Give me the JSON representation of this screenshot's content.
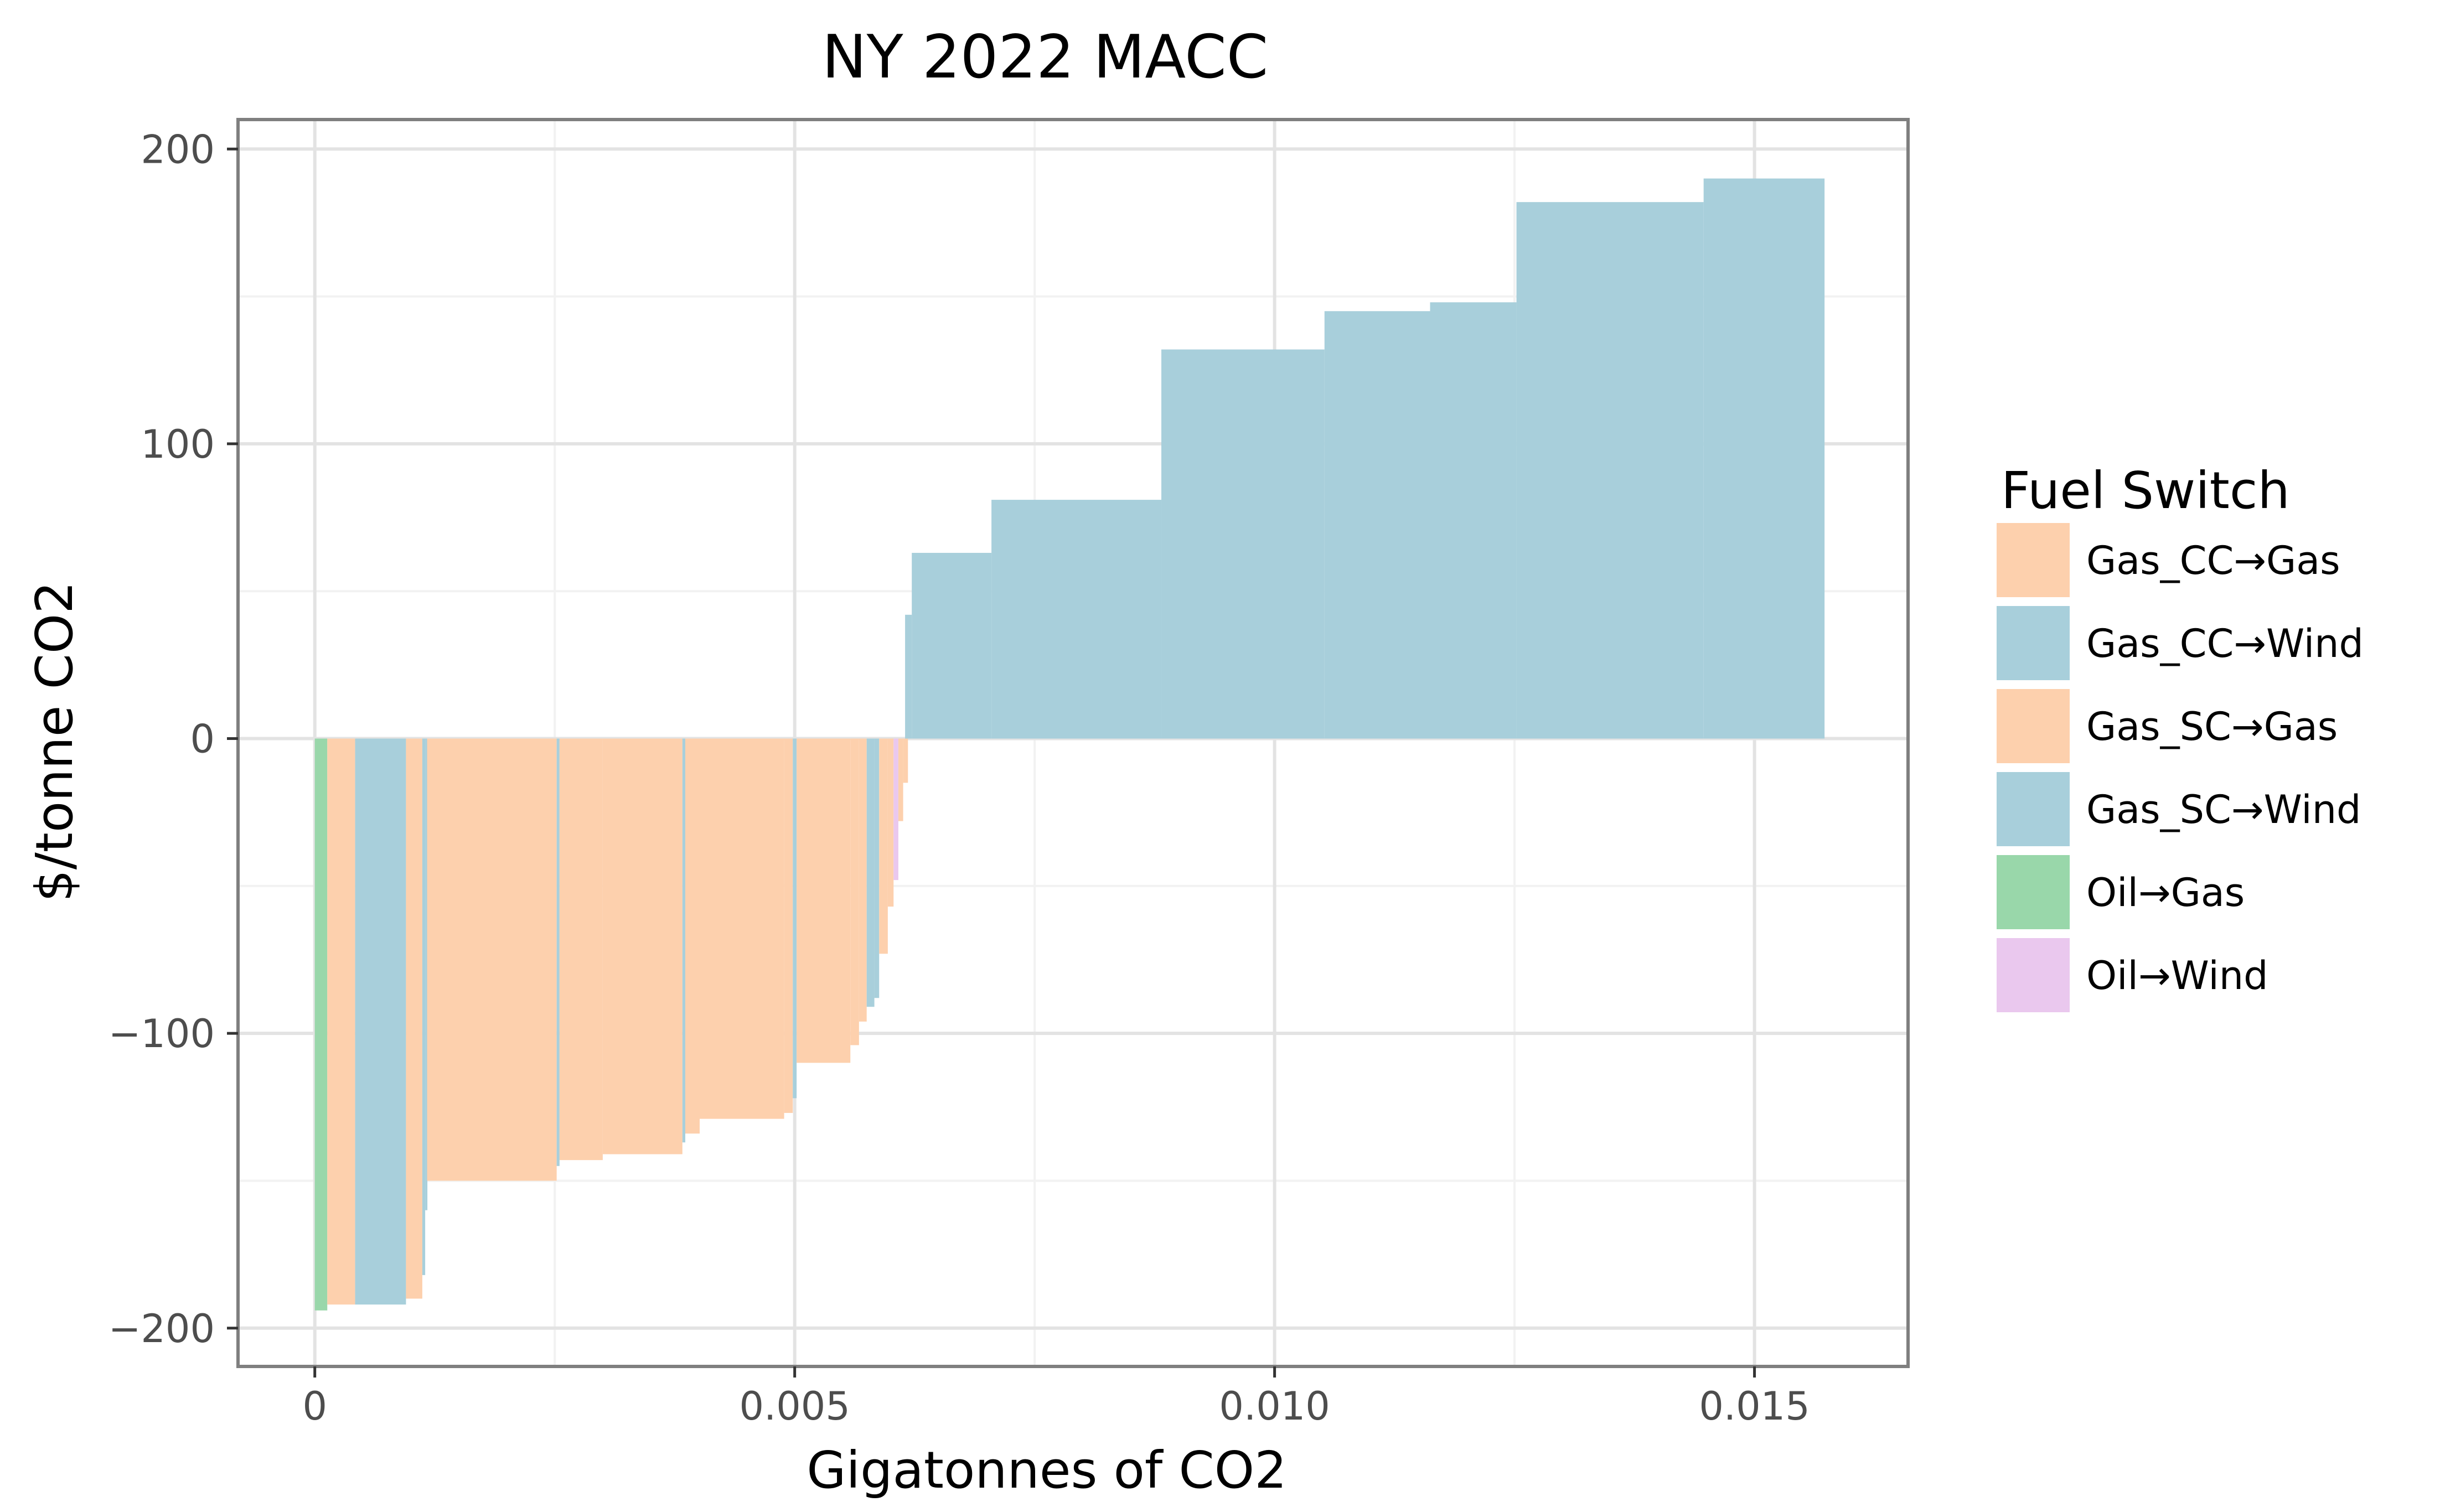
{
  "chart_data": {
    "type": "bar",
    "subtype": "marginal-abatement-cost-curve",
    "title": "NY 2022 MACC",
    "xlabel": "Gigatonnes of CO2",
    "ylabel": "$/tonne CO2",
    "xlim": [
      -0.0008,
      0.0166
    ],
    "ylim": [
      -213,
      210
    ],
    "x_ticks": [
      {
        "value": 0,
        "label": "0"
      },
      {
        "value": 0.005,
        "label": "0.005"
      },
      {
        "value": 0.01,
        "label": "0.010"
      },
      {
        "value": 0.015,
        "label": "0.015"
      }
    ],
    "y_ticks": [
      {
        "value": 200,
        "label": "200"
      },
      {
        "value": 100,
        "label": "100"
      },
      {
        "value": 0,
        "label": "0"
      },
      {
        "value": -100,
        "label": "−100"
      },
      {
        "value": -200,
        "label": "−200"
      }
    ],
    "grid": true,
    "legend": {
      "title": "Fuel Switch",
      "position": "right",
      "entries": [
        {
          "label": "Gas_CC→Gas",
          "color": "#fdd0ad"
        },
        {
          "label": "Gas_CC→Wind",
          "color": "#a8cfdb"
        },
        {
          "label": "Gas_SC→Gas",
          "color": "#fdd0ad"
        },
        {
          "label": "Gas_SC→Wind",
          "color": "#a8cfdb"
        },
        {
          "label": "Oil→Gas",
          "color": "#99d7aa"
        },
        {
          "label": "Oil→Wind",
          "color": "#eac8ee"
        }
      ]
    },
    "bars": [
      {
        "x0": 0.0,
        "x1": 0.00013,
        "y": -194,
        "series": "Oil→Gas"
      },
      {
        "x0": 0.00013,
        "x1": 0.00042,
        "y": -192,
        "series": "Gas_SC→Gas"
      },
      {
        "x0": 0.00042,
        "x1": 0.00095,
        "y": -192,
        "series": "Gas_SC→Wind"
      },
      {
        "x0": 0.00095,
        "x1": 0.00112,
        "y": -190,
        "series": "Gas_SC→Gas"
      },
      {
        "x0": 0.00112,
        "x1": 0.00115,
        "y": -182,
        "series": "Gas_SC→Wind"
      },
      {
        "x0": 0.00115,
        "x1": 0.00117,
        "y": -160,
        "series": "Gas_SC→Wind"
      },
      {
        "x0": 0.00117,
        "x1": 0.00252,
        "y": -150,
        "series": "Gas_SC→Gas"
      },
      {
        "x0": 0.00252,
        "x1": 0.00255,
        "y": -145,
        "series": "Gas_SC→Wind"
      },
      {
        "x0": 0.00255,
        "x1": 0.003,
        "y": -143,
        "series": "Gas_SC→Gas"
      },
      {
        "x0": 0.003,
        "x1": 0.00383,
        "y": -141,
        "series": "Gas_SC→Gas"
      },
      {
        "x0": 0.00383,
        "x1": 0.00386,
        "y": -137,
        "series": "Gas_SC→Wind"
      },
      {
        "x0": 0.00386,
        "x1": 0.00401,
        "y": -134,
        "series": "Gas_SC→Gas"
      },
      {
        "x0": 0.00401,
        "x1": 0.00489,
        "y": -129,
        "series": "Gas_SC→Gas"
      },
      {
        "x0": 0.00489,
        "x1": 0.00498,
        "y": -127,
        "series": "Gas_SC→Gas"
      },
      {
        "x0": 0.00498,
        "x1": 0.00502,
        "y": -122,
        "series": "Gas_SC→Wind"
      },
      {
        "x0": 0.00502,
        "x1": 0.00558,
        "y": -110,
        "series": "Gas_SC→Gas"
      },
      {
        "x0": 0.00558,
        "x1": 0.00567,
        "y": -104,
        "series": "Gas_SC→Gas"
      },
      {
        "x0": 0.00567,
        "x1": 0.00575,
        "y": -96,
        "series": "Gas_SC→Gas"
      },
      {
        "x0": 0.00575,
        "x1": 0.00583,
        "y": -91,
        "series": "Gas_SC→Wind"
      },
      {
        "x0": 0.00583,
        "x1": 0.00588,
        "y": -88,
        "series": "Gas_SC→Wind"
      },
      {
        "x0": 0.00588,
        "x1": 0.00597,
        "y": -73,
        "series": "Gas_SC→Gas"
      },
      {
        "x0": 0.00597,
        "x1": 0.00603,
        "y": -57,
        "series": "Gas_SC→Gas"
      },
      {
        "x0": 0.00603,
        "x1": 0.00608,
        "y": -48,
        "series": "Oil→Wind"
      },
      {
        "x0": 0.00608,
        "x1": 0.00613,
        "y": -28,
        "series": "Gas_SC→Gas"
      },
      {
        "x0": 0.00613,
        "x1": 0.00618,
        "y": -15,
        "series": "Gas_SC→Gas"
      },
      {
        "x0": 0.00615,
        "x1": 0.00622,
        "y": 42,
        "series": "Gas_CC→Wind"
      },
      {
        "x0": 0.00622,
        "x1": 0.00705,
        "y": 63,
        "series": "Gas_CC→Wind"
      },
      {
        "x0": 0.00705,
        "x1": 0.00882,
        "y": 81,
        "series": "Gas_CC→Wind"
      },
      {
        "x0": 0.00882,
        "x1": 0.01052,
        "y": 132,
        "series": "Gas_CC→Wind"
      },
      {
        "x0": 0.01052,
        "x1": 0.01162,
        "y": 145,
        "series": "Gas_CC→Wind"
      },
      {
        "x0": 0.01162,
        "x1": 0.01252,
        "y": 148,
        "series": "Gas_CC→Wind"
      },
      {
        "x0": 0.01252,
        "x1": 0.01447,
        "y": 182,
        "series": "Gas_CC→Wind"
      },
      {
        "x0": 0.01447,
        "x1": 0.01573,
        "y": 190,
        "series": "Gas_CC→Wind"
      }
    ]
  }
}
